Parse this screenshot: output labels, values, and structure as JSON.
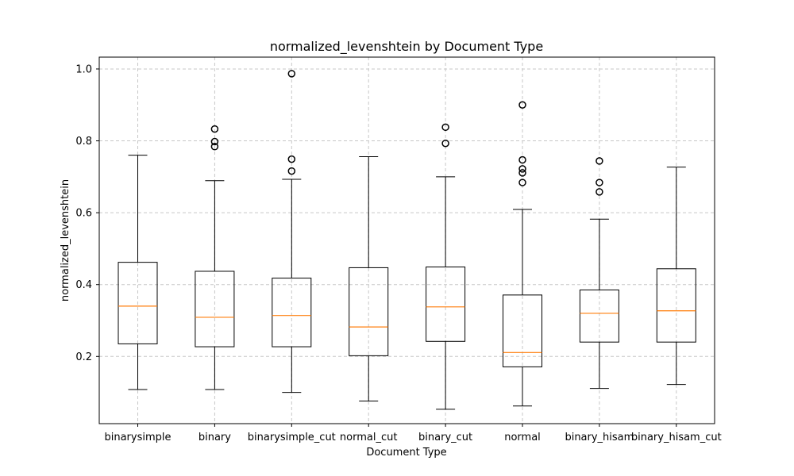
{
  "chart_data": {
    "type": "box",
    "title": "normalized_levenshtein by Document Type",
    "xlabel": "Document Type",
    "ylabel": "normalized_levenshtein",
    "ylim": [
      0.013,
      1.033
    ],
    "yticks": [
      "0.2",
      "0.4",
      "0.6",
      "0.8",
      "1.0"
    ],
    "grid": true,
    "colors": {
      "median": "#ff7f0e",
      "box": "#000000",
      "grid": "#c7c7c7"
    },
    "categories": [
      "binarysimple",
      "binary",
      "binarysimple_cut",
      "normal_cut",
      "binary_cut",
      "normal",
      "binary_hisam",
      "binary_hisam_cut"
    ],
    "boxes": [
      {
        "whislo": 0.108,
        "q1": 0.235,
        "med": 0.34,
        "q3": 0.462,
        "whishi": 0.76,
        "fliers": []
      },
      {
        "whislo": 0.108,
        "q1": 0.227,
        "med": 0.309,
        "q3": 0.437,
        "whishi": 0.689,
        "fliers": [
          0.833,
          0.798,
          0.784
        ]
      },
      {
        "whislo": 0.1,
        "q1": 0.227,
        "med": 0.314,
        "q3": 0.418,
        "whishi": 0.693,
        "fliers": [
          0.987,
          0.749,
          0.716
        ]
      },
      {
        "whislo": 0.076,
        "q1": 0.202,
        "med": 0.282,
        "q3": 0.447,
        "whishi": 0.756,
        "fliers": []
      },
      {
        "whislo": 0.053,
        "q1": 0.242,
        "med": 0.338,
        "q3": 0.449,
        "whishi": 0.7,
        "fliers": [
          0.838,
          0.793
        ]
      },
      {
        "whislo": 0.062,
        "q1": 0.171,
        "med": 0.211,
        "q3": 0.371,
        "whishi": 0.609,
        "fliers": [
          0.9,
          0.747,
          0.722,
          0.711,
          0.684
        ]
      },
      {
        "whislo": 0.111,
        "q1": 0.24,
        "med": 0.32,
        "q3": 0.385,
        "whishi": 0.582,
        "fliers": [
          0.744,
          0.684,
          0.658
        ]
      },
      {
        "whislo": 0.122,
        "q1": 0.24,
        "med": 0.327,
        "q3": 0.444,
        "whishi": 0.727,
        "fliers": []
      }
    ]
  }
}
